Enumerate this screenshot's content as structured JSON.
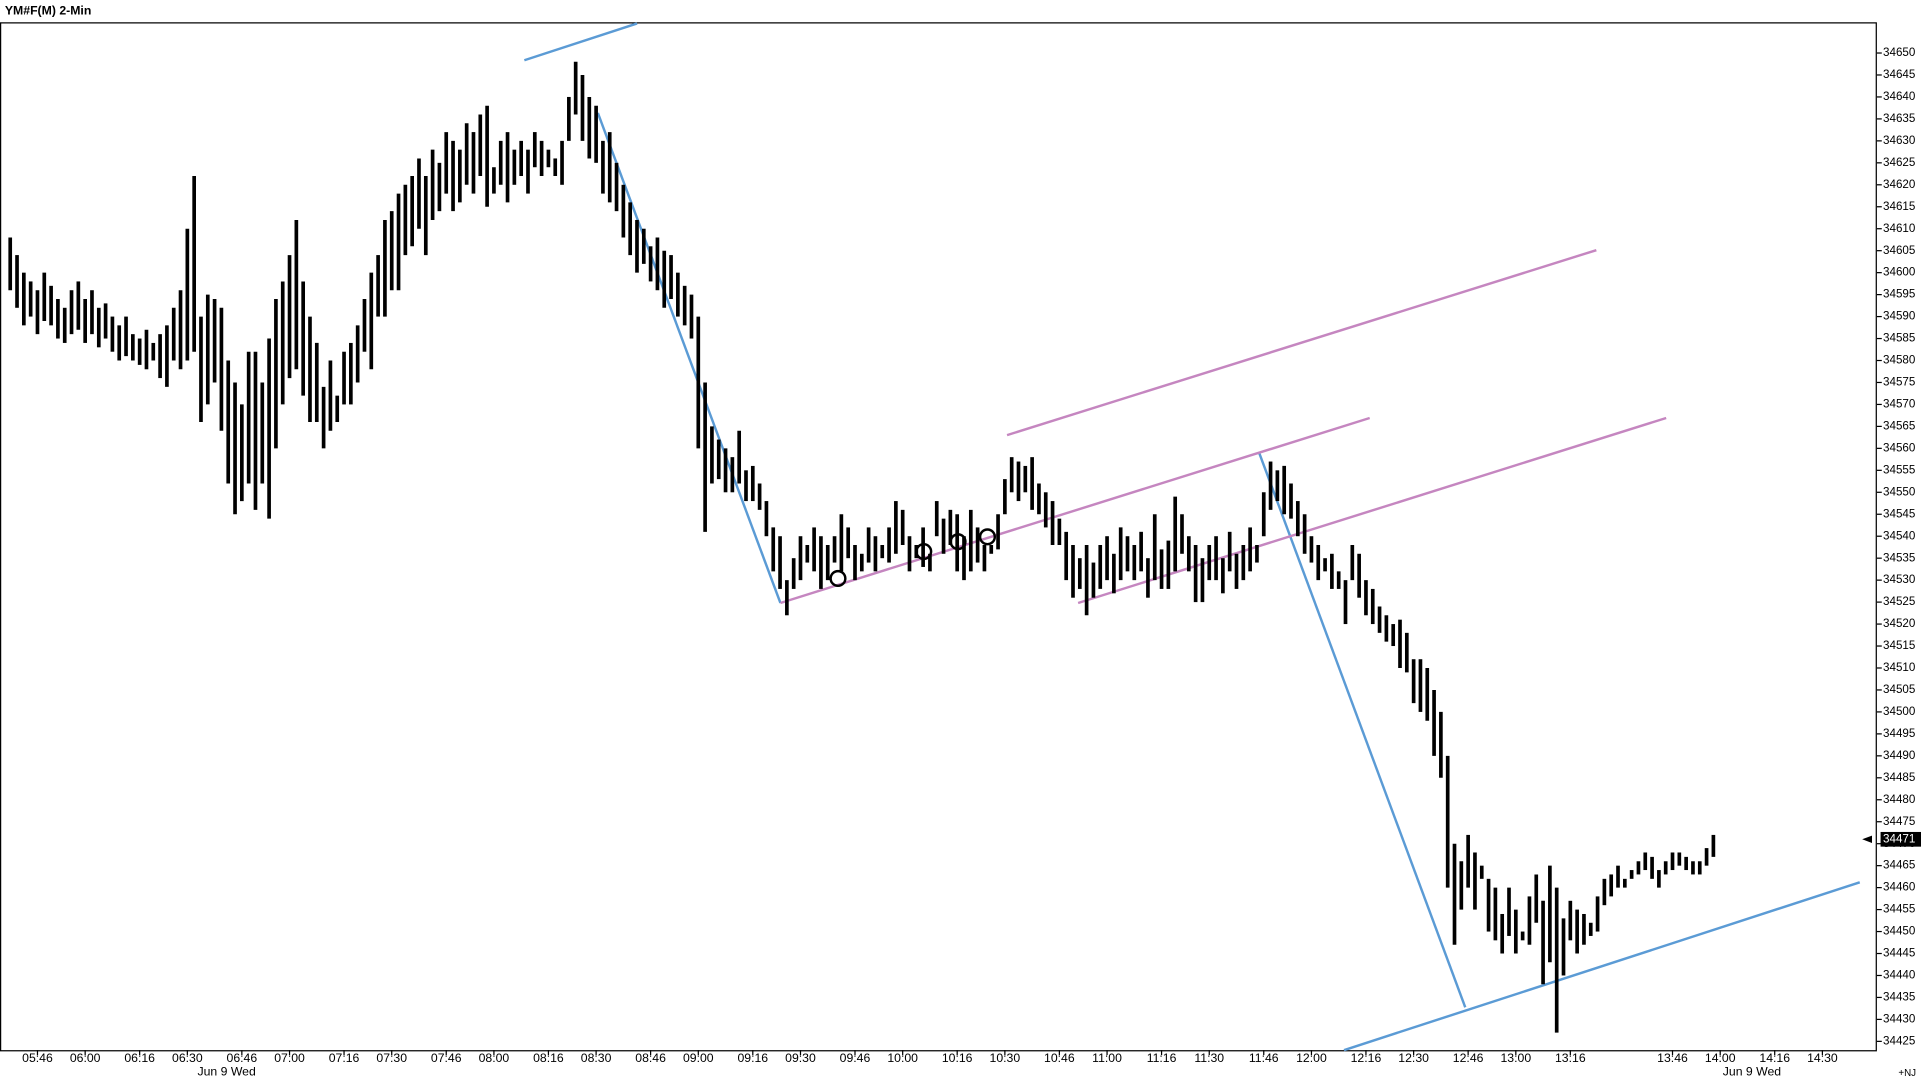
{
  "chart_data": {
    "type": "ohlc",
    "title": "YM#F(M) 2-Min",
    "x": [
      "05:38",
      "05:40",
      "05:42",
      "05:44",
      "05:46",
      "05:48",
      "05:50",
      "05:52",
      "05:54",
      "05:56",
      "05:58",
      "06:00",
      "06:02",
      "06:04",
      "06:06",
      "06:08",
      "06:10",
      "06:12",
      "06:14",
      "06:16",
      "06:18",
      "06:20",
      "06:22",
      "06:24",
      "06:26",
      "06:28",
      "06:30",
      "06:32",
      "06:34",
      "06:36",
      "06:38",
      "06:40",
      "06:42",
      "06:44",
      "06:46",
      "06:48",
      "06:50",
      "06:52",
      "06:54",
      "06:56",
      "06:58",
      "07:00",
      "07:02",
      "07:04",
      "07:06",
      "07:08",
      "07:10",
      "07:12",
      "07:14",
      "07:16",
      "07:18",
      "07:20",
      "07:22",
      "07:24",
      "07:26",
      "07:28",
      "07:30",
      "07:32",
      "07:34",
      "07:36",
      "07:38",
      "07:40",
      "07:42",
      "07:44",
      "07:46",
      "07:48",
      "07:50",
      "07:52",
      "07:54",
      "07:56",
      "07:58",
      "08:00",
      "08:02",
      "08:04",
      "08:06",
      "08:08",
      "08:10",
      "08:12",
      "08:14",
      "08:16",
      "08:18",
      "08:20",
      "08:22",
      "08:24",
      "08:26",
      "08:28",
      "08:30",
      "08:32",
      "08:34",
      "08:36",
      "08:38",
      "08:40",
      "08:42",
      "08:44",
      "08:46",
      "08:48",
      "08:50",
      "08:52",
      "08:54",
      "08:56",
      "08:58",
      "09:00",
      "09:02",
      "09:04",
      "09:06",
      "09:08",
      "09:10",
      "09:12",
      "09:14",
      "09:16",
      "09:18",
      "09:20",
      "09:22",
      "09:24",
      "09:26",
      "09:28",
      "09:30",
      "09:32",
      "09:34",
      "09:36",
      "09:38",
      "09:40",
      "09:42",
      "09:44",
      "09:46",
      "09:48",
      "09:50",
      "09:52",
      "09:54",
      "09:56",
      "09:58",
      "10:00",
      "10:02",
      "10:04",
      "10:06",
      "10:08",
      "10:10",
      "10:12",
      "10:14",
      "10:16",
      "10:18",
      "10:20",
      "10:22",
      "10:24",
      "10:26",
      "10:28",
      "10:30",
      "10:32",
      "10:34",
      "10:36",
      "10:38",
      "10:40",
      "10:42",
      "10:44",
      "10:46",
      "10:48",
      "10:50",
      "10:52",
      "10:54",
      "10:56",
      "10:58",
      "11:00",
      "11:02",
      "11:04",
      "11:06",
      "11:08",
      "11:10",
      "11:12",
      "11:14",
      "11:16",
      "11:18",
      "11:20",
      "11:22",
      "11:24",
      "11:26",
      "11:28",
      "11:30",
      "11:32",
      "11:34",
      "11:36",
      "11:38",
      "11:40",
      "11:42",
      "11:44",
      "11:46",
      "11:48",
      "11:50",
      "11:52",
      "11:54",
      "11:56",
      "11:58",
      "12:00",
      "12:02",
      "12:04",
      "12:06",
      "12:08",
      "12:10",
      "12:12",
      "12:14",
      "12:16",
      "12:18",
      "12:20",
      "12:22",
      "12:24",
      "12:26",
      "12:28",
      "12:30",
      "12:32",
      "12:34",
      "12:36",
      "12:38",
      "12:40",
      "12:42",
      "12:44",
      "12:46",
      "12:48",
      "12:50",
      "12:52",
      "12:54",
      "12:56",
      "12:58",
      "13:00",
      "13:02",
      "13:04",
      "13:06",
      "13:08",
      "13:10",
      "13:12",
      "13:14",
      "13:16",
      "13:18",
      "13:20",
      "13:22",
      "13:24",
      "13:26",
      "13:28",
      "13:30",
      "13:32",
      "13:34",
      "13:36",
      "13:38",
      "13:40",
      "13:42",
      "13:44",
      "13:46",
      "13:48",
      "13:50",
      "13:52",
      "13:54",
      "13:56",
      "13:58"
    ],
    "high": [
      34608,
      34604,
      34600,
      34598,
      34596,
      34600,
      34597,
      34594,
      34592,
      34596,
      34598,
      34594,
      34596,
      34592,
      34593,
      34590,
      34588,
      34590,
      34586,
      34585,
      34587,
      34584,
      34586,
      34588,
      34592,
      34596,
      34610,
      34622,
      34590,
      34595,
      34594,
      34592,
      34580,
      34575,
      34570,
      34582,
      34582,
      34575,
      34585,
      34594,
      34598,
      34604,
      34612,
      34598,
      34590,
      34584,
      34574,
      34580,
      34572,
      34582,
      34584,
      34588,
      34594,
      34600,
      34604,
      34612,
      34614,
      34618,
      34620,
      34622,
      34626,
      34622,
      34628,
      34625,
      34632,
      34630,
      34628,
      34634,
      34632,
      34636,
      34638,
      34624,
      34630,
      34632,
      34628,
      34630,
      34628,
      34632,
      34630,
      34628,
      34626,
      34630,
      34640,
      34648,
      34645,
      34640,
      34638,
      34630,
      34632,
      34625,
      34620,
      34616,
      34612,
      34610,
      34606,
      34608,
      34605,
      34604,
      34600,
      34597,
      34595,
      34590,
      34575,
      34565,
      34562,
      34560,
      34558,
      34564,
      34555,
      34556,
      34552,
      34548,
      34542,
      34540,
      34530,
      34535,
      34540,
      34538,
      34542,
      34540,
      34538,
      34540,
      34545,
      34542,
      34538,
      34536,
      34542,
      34540,
      34538,
      34542,
      34548,
      34546,
      34540,
      34538,
      34542,
      34536,
      34548,
      34544,
      34546,
      34545,
      34540,
      34546,
      34542,
      34538,
      34538,
      34545,
      34553,
      34558,
      34557,
      34556,
      34558,
      34552,
      34550,
      34548,
      34544,
      34541,
      34538,
      34535,
      34538,
      34534,
      34538,
      34540,
      34536,
      34542,
      34540,
      34538,
      34541,
      34535,
      34545,
      34537,
      34539,
      34549,
      34545,
      34540,
      34538,
      34535,
      34538,
      34540,
      34535,
      34541,
      34536,
      34538,
      34542,
      34538,
      34550,
      34557,
      34555,
      34556,
      34552,
      34548,
      34545,
      34540,
      34538,
      34535,
      34536,
      34532,
      34530,
      34538,
      34536,
      34530,
      34528,
      34524,
      34522,
      34520,
      34521,
      34518,
      34512,
      34512,
      34510,
      34505,
      34500,
      34490,
      34470,
      34466,
      34472,
      34468,
      34465,
      34462,
      34460,
      34454,
      34460,
      34455,
      34450,
      34458,
      34463,
      34457,
      34465,
      34460,
      34453,
      34457,
      34455,
      34454,
      34452,
      34458,
      34462,
      34463,
      34465,
      34462,
      34464,
      34466,
      34468,
      34467,
      34464,
      34466,
      34468,
      34468,
      34467,
      34466,
      34466,
      34469,
      34472
    ],
    "low": [
      34596,
      34592,
      34588,
      34590,
      34586,
      34589,
      34588,
      34585,
      34584,
      34586,
      34587,
      34584,
      34586,
      34583,
      34585,
      34582,
      34580,
      34581,
      34580,
      34579,
      34578,
      34580,
      34576,
      34574,
      34580,
      34578,
      34580,
      34582,
      34566,
      34570,
      34575,
      34564,
      34552,
      34545,
      34548,
      34552,
      34546,
      34552,
      34544,
      34560,
      34570,
      34576,
      34578,
      34572,
      34566,
      34566,
      34560,
      34564,
      34566,
      34570,
      34570,
      34575,
      34582,
      34578,
      34590,
      34590,
      34596,
      34596,
      34604,
      34606,
      34610,
      34604,
      34612,
      34614,
      34618,
      34614,
      34616,
      34620,
      34618,
      34622,
      34615,
      34618,
      34620,
      34616,
      34620,
      34622,
      34618,
      34624,
      34622,
      34624,
      34622,
      34620,
      34630,
      34636,
      34630,
      34626,
      34625,
      34618,
      34616,
      34614,
      34608,
      34604,
      34600,
      34602,
      34598,
      34596,
      34592,
      34594,
      34590,
      34588,
      34585,
      34560,
      34541,
      34552,
      34553,
      34550,
      34550,
      34552,
      34548,
      34548,
      34546,
      34540,
      34532,
      34528,
      34522,
      34528,
      34530,
      34534,
      34532,
      34528,
      34530,
      34534,
      34532,
      34535,
      34530,
      34532,
      34534,
      34532,
      34535,
      34534,
      34536,
      34538,
      34532,
      34535,
      34533,
      34532,
      34540,
      34536,
      34538,
      34532,
      34530,
      34532,
      34534,
      34532,
      34536,
      34537,
      34545,
      34550,
      34548,
      34550,
      34546,
      34545,
      34542,
      34538,
      34538,
      34530,
      34526,
      34528,
      34522,
      34526,
      34528,
      34530,
      34527,
      34530,
      34532,
      34530,
      34532,
      34526,
      34530,
      34528,
      34528,
      34532,
      34536,
      34532,
      34525,
      34525,
      34530,
      34530,
      34527,
      34532,
      34528,
      34530,
      34532,
      34534,
      34540,
      34546,
      34548,
      34545,
      34544,
      34540,
      34536,
      34534,
      34530,
      34532,
      34528,
      34528,
      34520,
      34530,
      34526,
      34522,
      34520,
      34518,
      34516,
      34515,
      34510,
      34509,
      34502,
      34500,
      34498,
      34490,
      34485,
      34460,
      34447,
      34455,
      34460,
      34455,
      34462,
      34450,
      34448,
      34445,
      34449,
      34445,
      34448,
      34447,
      34452,
      34438,
      34443,
      34427,
      34440,
      34448,
      34445,
      34447,
      34449,
      34450,
      34456,
      34458,
      34460,
      34460,
      34462,
      34463,
      34464,
      34462,
      34460,
      34463,
      34464,
      34465,
      34464,
      34463,
      34463,
      34465,
      34467
    ],
    "color": "#000000",
    "xlim": [
      "05:35",
      "14:46"
    ],
    "xticks": [
      "05:46",
      "06:00",
      "06:16",
      "06:30",
      "06:46",
      "07:00",
      "07:16",
      "07:30",
      "07:46",
      "08:00",
      "08:16",
      "08:30",
      "08:46",
      "09:00",
      "09:16",
      "09:30",
      "09:46",
      "10:00",
      "10:16",
      "10:30",
      "10:46",
      "11:00",
      "11:16",
      "11:30",
      "11:46",
      "12:00",
      "12:16",
      "12:30",
      "12:46",
      "13:00",
      "13:16",
      "13:46",
      "14:00",
      "14:16",
      "14:30"
    ],
    "date_labels": [
      "Jun 9 Wed",
      "Jun 9 Wed"
    ],
    "ylim": [
      34423,
      34657
    ],
    "yticks": [
      34425,
      34430,
      34435,
      34440,
      34445,
      34450,
      34455,
      34460,
      34465,
      34470,
      34475,
      34480,
      34485,
      34490,
      34495,
      34500,
      34505,
      34510,
      34515,
      34520,
      34525,
      34530,
      34535,
      34540,
      34545,
      34550,
      34555,
      34560,
      34565,
      34570,
      34575,
      34580,
      34585,
      34590,
      34595,
      34600,
      34605,
      34610,
      34615,
      34620,
      34625,
      34630,
      34635,
      34640,
      34645,
      34650
    ],
    "last_price": 34471,
    "corner_label": "+NJ"
  }
}
